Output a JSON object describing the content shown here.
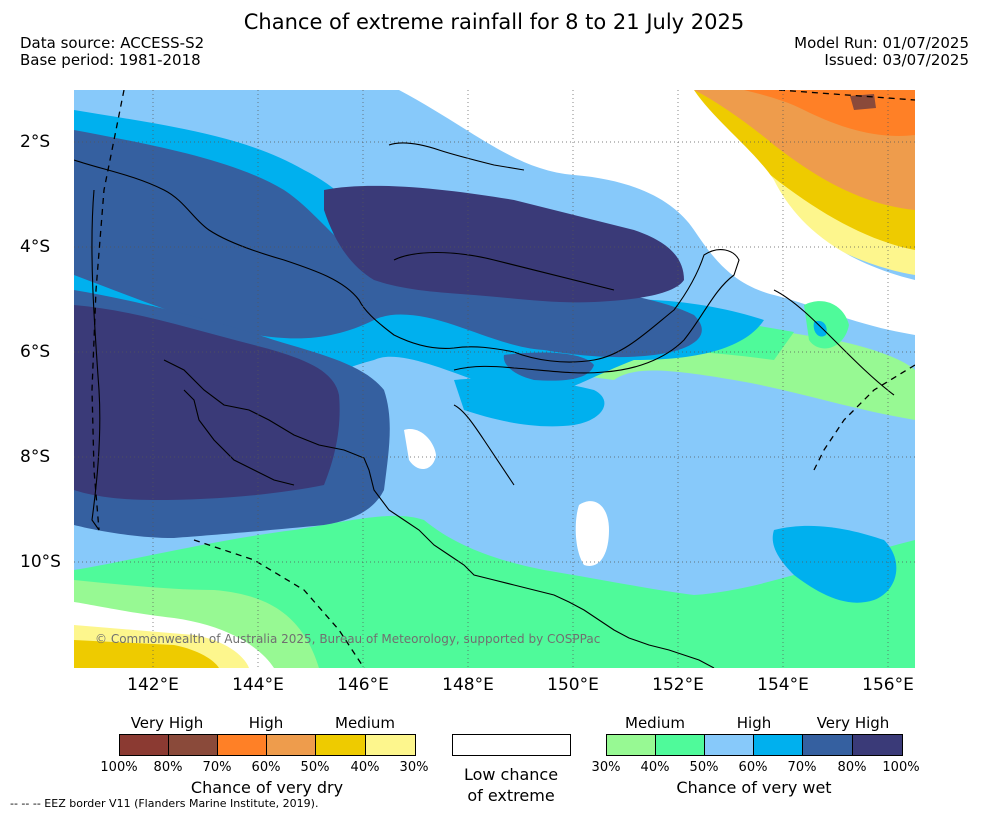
{
  "header": {
    "title": "Chance of extreme rainfall for 8 to 21 July 2025",
    "data_source": "Data source: ACCESS-S2",
    "base_period": "Base period: 1981-2018",
    "model_run": "Model Run: 01/07/2025",
    "issued": "Issued: 03/07/2025"
  },
  "map": {
    "lat_ticks": [
      "2°S",
      "4°S",
      "6°S",
      "8°S",
      "10°S"
    ],
    "lon_ticks": [
      "142°E",
      "144°E",
      "146°E",
      "148°E",
      "150°E",
      "152°E",
      "154°E",
      "156°E"
    ],
    "copyright": "© Commonwealth of Australia 2025, Bureau of Meteorology, supported by COSPPac",
    "coastline_color": "#000000",
    "gridline_style": "dotted"
  },
  "legend": {
    "dry": {
      "title": "Chance of very dry",
      "categories": [
        "Very High",
        "High",
        "Medium"
      ],
      "ticks": [
        "100%",
        "80%",
        "70%",
        "60%",
        "50%",
        "40%",
        "30%"
      ],
      "colors": [
        "#8b3a32",
        "#8a4a3a",
        "#ff8026",
        "#ee9c4c",
        "#eecb00",
        "#fdf68d"
      ]
    },
    "low": {
      "label_line1": "Low chance",
      "label_line2": "of extreme",
      "color": "#ffffff"
    },
    "wet": {
      "title": "Chance of very wet",
      "categories": [
        "Medium",
        "High",
        "Very High"
      ],
      "ticks": [
        "30%",
        "40%",
        "50%",
        "60%",
        "70%",
        "80%",
        "100%"
      ],
      "colors": [
        "#97f993",
        "#4ffa9a",
        "#87c9fa",
        "#00b0ee",
        "#3560a0",
        "#3a3a78"
      ]
    }
  },
  "footer": {
    "eez_note": "--  --  -- EEZ border V11 (Flanders Marine Institute, 2019)."
  }
}
